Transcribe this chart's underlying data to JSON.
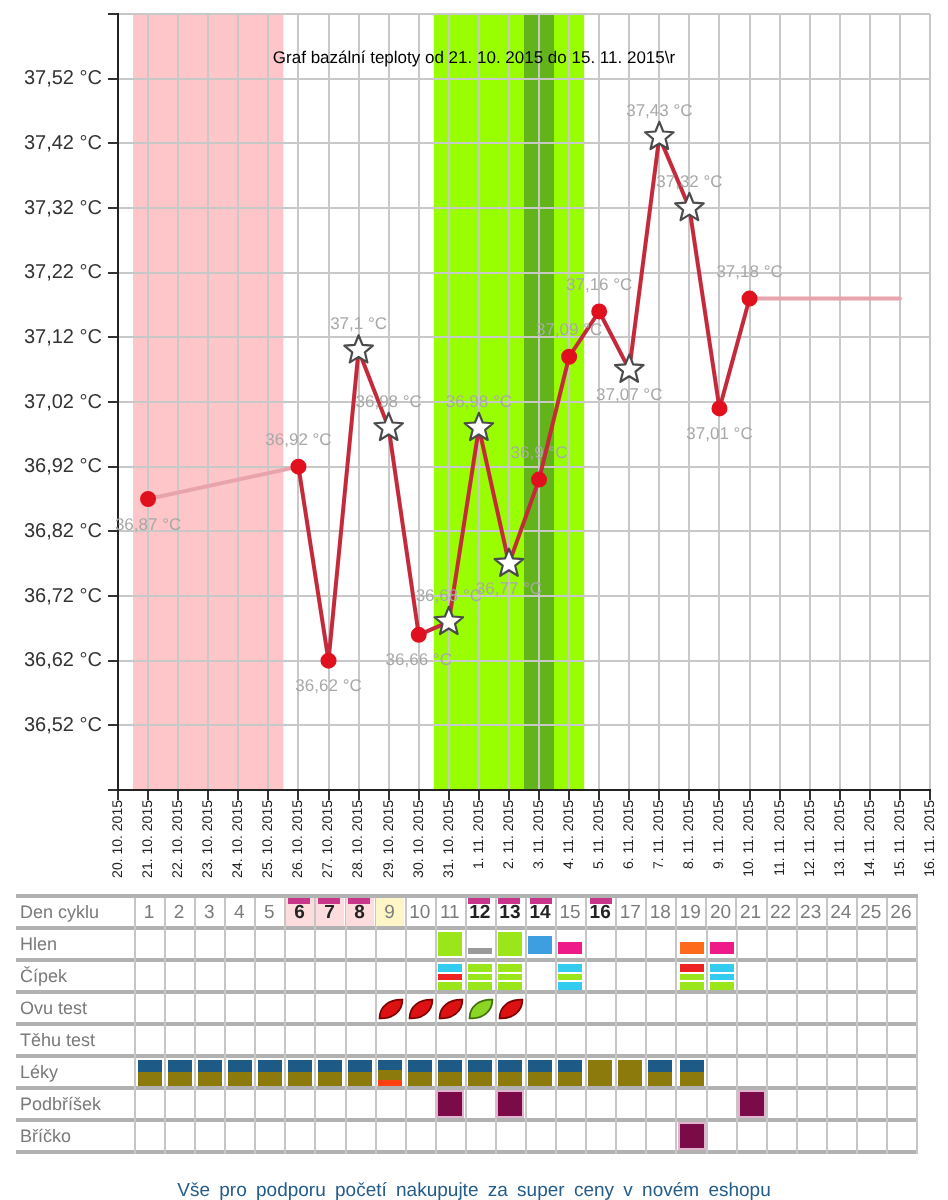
{
  "chart_data": [
    {
      "type": "line",
      "title": "Graf bazální teploty od 21. 10. 2015 do 15. 11. 2015\\r",
      "xlim": [
        "2015-10-20",
        "2015-11-16"
      ],
      "xticks": [
        {
          "value": "2015-10-20",
          "label": "20. 10. 2015"
        },
        {
          "value": "2015-10-21",
          "label": "21. 10. 2015"
        },
        {
          "value": "2015-10-22",
          "label": "22. 10. 2015"
        },
        {
          "value": "2015-10-23",
          "label": "23. 10. 2015"
        },
        {
          "value": "2015-10-24",
          "label": "24. 10. 2015"
        },
        {
          "value": "2015-10-25",
          "label": "25. 10. 2015"
        },
        {
          "value": "2015-10-26",
          "label": "26. 10. 2015"
        },
        {
          "value": "2015-10-27",
          "label": "27. 10. 2015"
        },
        {
          "value": "2015-10-28",
          "label": "28. 10. 2015"
        },
        {
          "value": "2015-10-29",
          "label": "29. 10. 2015"
        },
        {
          "value": "2015-10-30",
          "label": "30. 10. 2015"
        },
        {
          "value": "2015-10-31",
          "label": "31. 10. 2015"
        },
        {
          "value": "2015-11-01",
          "label": "1. 11. 2015"
        },
        {
          "value": "2015-11-02",
          "label": "2. 11. 2015"
        },
        {
          "value": "2015-11-03",
          "label": "3. 11. 2015"
        },
        {
          "value": "2015-11-04",
          "label": "4. 11. 2015"
        },
        {
          "value": "2015-11-05",
          "label": "5. 11. 2015"
        },
        {
          "value": "2015-11-06",
          "label": "6. 11. 2015"
        },
        {
          "value": "2015-11-07",
          "label": "7. 11. 2015"
        },
        {
          "value": "2015-11-08",
          "label": "8. 11. 2015"
        },
        {
          "value": "2015-11-09",
          "label": "9. 11. 2015"
        },
        {
          "value": "2015-11-10",
          "label": "10. 11. 2015"
        },
        {
          "value": "2015-11-11",
          "label": "11. 11. 2015"
        },
        {
          "value": "2015-11-12",
          "label": "12. 11. 2015"
        },
        {
          "value": "2015-11-13",
          "label": "13. 11. 2015"
        },
        {
          "value": "2015-11-14",
          "label": "14. 11. 2015"
        },
        {
          "value": "2015-11-15",
          "label": "15. 11. 2015"
        },
        {
          "value": "2015-11-16",
          "label": "16. 11. 2015"
        }
      ],
      "x2label": "Den cyklu",
      "x2lim": [
        "2015-10-20",
        "2015-11-16"
      ],
      "x2ticks": [
        {
          "value": "2015-10-21",
          "label": "1"
        },
        {
          "value": "2015-10-22",
          "label": "2"
        },
        {
          "value": "2015-10-23",
          "label": "3"
        },
        {
          "value": "2015-10-24",
          "label": "4"
        },
        {
          "value": "2015-10-25",
          "label": "5"
        },
        {
          "value": "2015-10-26",
          "label": "6"
        },
        {
          "value": "2015-10-27",
          "label": "7"
        },
        {
          "value": "2015-10-28",
          "label": "8"
        },
        {
          "value": "2015-10-29",
          "label": "9"
        },
        {
          "value": "2015-10-30",
          "label": "10"
        },
        {
          "value": "2015-10-31",
          "label": "11"
        },
        {
          "value": "2015-11-01",
          "label": "12"
        },
        {
          "value": "2015-11-02",
          "label": "13"
        },
        {
          "value": "2015-11-03",
          "label": "14"
        },
        {
          "value": "2015-11-04",
          "label": "15"
        },
        {
          "value": "2015-11-05",
          "label": "16"
        },
        {
          "value": "2015-11-06",
          "label": "17"
        },
        {
          "value": "2015-11-07",
          "label": "18"
        },
        {
          "value": "2015-11-08",
          "label": "19"
        },
        {
          "value": "2015-11-09",
          "label": "20"
        },
        {
          "value": "2015-11-10",
          "label": "21"
        },
        {
          "value": "2015-11-11",
          "label": "22"
        },
        {
          "value": "2015-11-12",
          "label": "23"
        },
        {
          "value": "2015-11-13",
          "label": "24"
        },
        {
          "value": "2015-11-14",
          "label": "25"
        },
        {
          "value": "2015-11-15",
          "label": "26"
        }
      ],
      "ylim": [
        36.42,
        37.62
      ],
      "yticks": [
        {
          "value": 36.42,
          "label": null
        },
        {
          "value": 36.52,
          "label": "36,52 °C"
        },
        {
          "value": 36.62,
          "label": "36,62 °C"
        },
        {
          "value": 36.72,
          "label": "36,72 °C"
        },
        {
          "value": 36.82,
          "label": "36,82 °C"
        },
        {
          "value": 36.92,
          "label": "36,92 °C"
        },
        {
          "value": 37.02,
          "label": "37,02 °C"
        },
        {
          "value": 37.12,
          "label": "37,12 °C"
        },
        {
          "value": 37.22,
          "label": "37,22 °C"
        },
        {
          "value": 37.32,
          "label": "37,32 °C"
        },
        {
          "value": 37.42,
          "label": "37,42 °C"
        },
        {
          "value": 37.52,
          "label": "37,52 °C"
        },
        {
          "value": 37.62,
          "label": null
        }
      ],
      "grid": true,
      "bands": [
        {
          "axis": "x",
          "from": "2015-10-20T12:00",
          "to": "2015-10-25T12:00",
          "color": "#ffc6c9"
        },
        {
          "axis": "x",
          "from": "2015-10-30T12:00",
          "to": "2015-11-04T12:00",
          "color": "#99ff00"
        },
        {
          "axis": "x",
          "from": "2015-11-02T12:00",
          "to": "2015-11-03T12:00",
          "color": "#62b41a"
        }
      ],
      "series": [
        {
          "type": "line",
          "color": "#c42a3a",
          "x": [
            "2015-10-26",
            "2015-10-27",
            "2015-10-28",
            "2015-10-29",
            "2015-10-30",
            "2015-10-31",
            "2015-11-01",
            "2015-11-02",
            "2015-11-03",
            "2015-11-04",
            "2015-11-05",
            "2015-11-06",
            "2015-11-07",
            "2015-11-08",
            "2015-11-09",
            "2015-11-10"
          ],
          "values": [
            36.92,
            36.62,
            37.1,
            36.98,
            36.66,
            36.68,
            36.98,
            36.77,
            36.9,
            37.09,
            37.16,
            37.07,
            37.43,
            37.32,
            37.01,
            37.18
          ]
        },
        {
          "type": "line",
          "color": "#e8a4ac",
          "x": [
            "2015-10-21",
            "2015-10-26"
          ],
          "values": [
            36.87,
            36.92
          ]
        },
        {
          "type": "line",
          "color": "#e8a4ac",
          "x": [
            "2015-11-10",
            "2015-11-15"
          ],
          "values": [
            37.18,
            37.18
          ]
        },
        {
          "type": "scatter",
          "color": "#e0101e",
          "marker": "circle",
          "x": [
            "2015-10-21",
            "2015-10-26",
            "2015-10-27",
            "2015-10-30",
            "2015-11-03",
            "2015-11-04",
            "2015-11-05",
            "2015-11-09",
            "2015-11-10"
          ],
          "values": [
            36.87,
            36.92,
            36.62,
            36.66,
            36.9,
            37.09,
            37.16,
            37.01,
            37.18
          ],
          "value_labels": [
            "36,87 °C",
            "36,92 °C",
            "36,62 °C",
            "36,66 °C",
            "36,9 °C",
            "37,09 °C",
            "37,16 °C",
            "37,01 °C",
            "37,18 °C"
          ]
        },
        {
          "type": "scatter",
          "color": "#ffffff",
          "marker": "star",
          "x": [
            "2015-10-28",
            "2015-10-29",
            "2015-10-31",
            "2015-11-01",
            "2015-11-02",
            "2015-11-06",
            "2015-11-07",
            "2015-11-08"
          ],
          "values": [
            37.1,
            36.98,
            36.68,
            36.98,
            36.77,
            37.07,
            37.43,
            37.32
          ],
          "value_labels": [
            "37,1 °C",
            "36,98 °C",
            "36,68 °C",
            "36,98 °C",
            "36,77 °C",
            "37,07 °C",
            "37,43 °C",
            "37,32 °C"
          ]
        }
      ]
    },
    {
      "type": "other",
      "y_categories": [
        "Hlen",
        "Čípek",
        "Ovu test",
        "Těhu test",
        "Léky",
        "Podbříšek",
        "Bříčko"
      ],
      "annotations": [
        "Vše pro podporu početí nakupujte za super ceny v novém eshopu"
      ]
    }
  ]
}
